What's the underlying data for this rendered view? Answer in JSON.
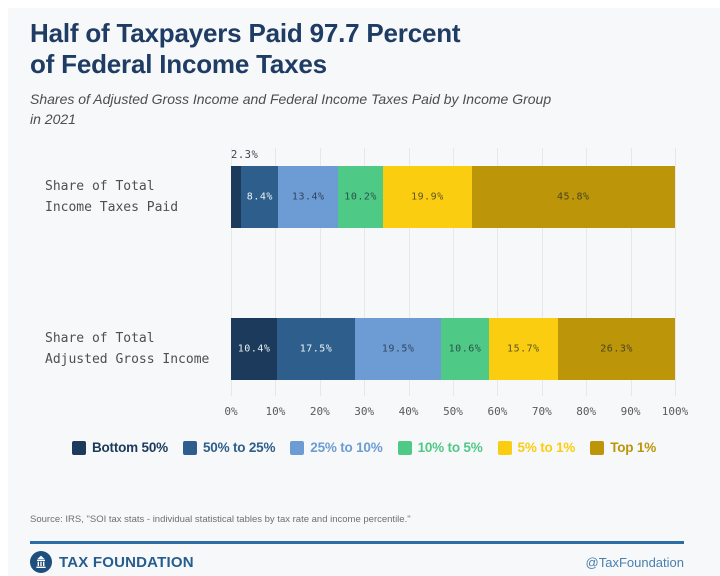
{
  "title": "Half of Taxpayers Paid 97.7 Percent\nof Federal Income Taxes",
  "subtitle": "Shares of Adjusted Gross Income and Federal Income Taxes Paid by Income Group\nin 2021",
  "chart_data": {
    "type": "bar",
    "orientation": "horizontal-stacked",
    "categories": [
      "Share of Total\nIncome Taxes Paid",
      "Share of Total\nAdjusted Gross Income"
    ],
    "series": [
      {
        "name": "Bottom 50%",
        "color": "#1b3a5c",
        "values": [
          2.3,
          10.4
        ]
      },
      {
        "name": "50% to 25%",
        "color": "#2e5e8c",
        "values": [
          8.4,
          17.5
        ]
      },
      {
        "name": "25% to 10%",
        "color": "#6d9bd3",
        "values": [
          13.4,
          19.5
        ]
      },
      {
        "name": "10% to 5%",
        "color": "#4fc986",
        "values": [
          10.2,
          10.6
        ]
      },
      {
        "name": "5% to 1%",
        "color": "#fbcd11",
        "values": [
          19.9,
          15.7
        ]
      },
      {
        "name": "Top 1%",
        "color": "#bd9509",
        "values": [
          45.8,
          26.3
        ]
      }
    ],
    "x_ticks": [
      "0%",
      "10%",
      "20%",
      "30%",
      "40%",
      "50%",
      "60%",
      "70%",
      "80%",
      "90%",
      "100%"
    ],
    "xlim": [
      0,
      100
    ],
    "grid": true,
    "legend_position": "bottom"
  },
  "colors": {
    "title": "#1e3c64",
    "background": "#f7f8f9",
    "divider": "#2c6da5",
    "brand": "#265d8f",
    "handle": "#4a7fae"
  },
  "source": "Source: IRS, \"SOI tax stats - individual statistical tables by tax rate and income percentile.\"",
  "footer": {
    "brand": "TAX FOUNDATION",
    "handle": "@TaxFoundation"
  }
}
